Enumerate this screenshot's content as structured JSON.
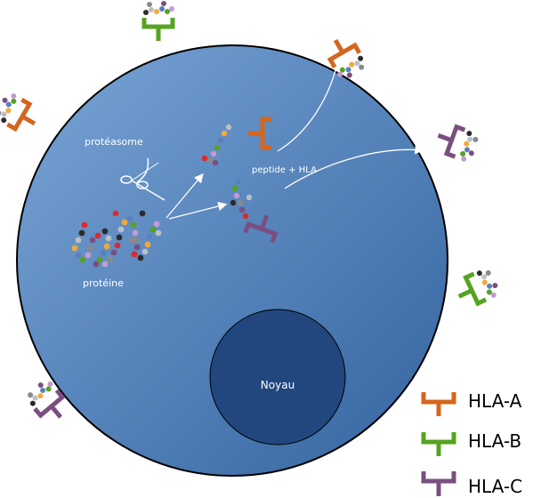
{
  "labels": {
    "proteasome": "protéasome",
    "protein": "protéine",
    "peptide_hla": "peptide + HLA",
    "nucleus": "Noyau"
  },
  "legend": [
    {
      "label": "HLA-A",
      "color": "#d4661e"
    },
    {
      "label": "HLA-B",
      "color": "#55a320"
    },
    {
      "label": "HLA-C",
      "color": "#7a4f80"
    }
  ],
  "colors": {
    "cell_light": "#7aa5d6",
    "cell_dark": "#3a69a6",
    "nucleus": "#22477f",
    "hla_a": "#d4661e",
    "hla_b": "#55a320",
    "hla_c": "#7a4f80"
  },
  "icons": [
    "scissors-icon"
  ]
}
